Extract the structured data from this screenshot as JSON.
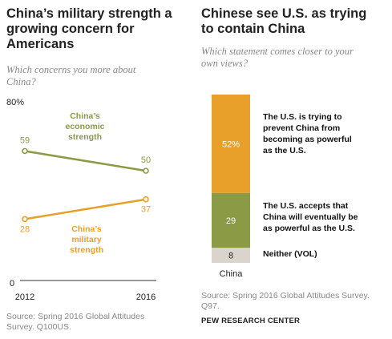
{
  "left": {
    "title_lines": [
      "China’s military strength  a",
      "growing concern for",
      "Americans"
    ],
    "subtitle_lines": [
      "Which concerns you more about",
      "China?"
    ],
    "ylim": [
      0,
      80
    ],
    "ytick_top": "80%",
    "ytick_bottom": "0",
    "source_lines": [
      "Source: Spring 2016 Global Attitudes",
      "Survey. Q100US."
    ]
  },
  "right": {
    "title_lines": [
      "Chinese see U.S. as trying",
      "to contain China"
    ],
    "subtitle_lines": [
      "Which statement comes closer to your",
      "own views?"
    ],
    "category": "China",
    "segment_labels": [
      [
        "The U.S. is trying to",
        "prevent  China from",
        "becoming as powerful",
        "as the U.S."
      ],
      [
        "The U.S. accepts that",
        "China will eventually be",
        "as powerful  as the U.S."
      ],
      [
        "Neither (VOL)"
      ]
    ],
    "source_lines": [
      "Source: Spring 2016 Global Attitudes Survey.",
      "Q97."
    ]
  },
  "brand": "PEW RESEARCH CENTER",
  "colors": {
    "green": "#8a9a45",
    "orange": "#e9a02b",
    "neither": "#d9d5cc",
    "axis": "#333333"
  },
  "chart_data": [
    {
      "type": "line",
      "title": "China’s military strength  a growing concern for Americans",
      "x": [
        "2012",
        "2016"
      ],
      "ylim": [
        0,
        80
      ],
      "series": [
        {
          "name": "China’s economic strength",
          "values": [
            59,
            50
          ],
          "color": "#8a9a45",
          "labels": [
            "59",
            "50"
          ]
        },
        {
          "name": "China’s military strength",
          "values": [
            28,
            37
          ],
          "color": "#e9a02b",
          "labels": [
            "28",
            "37"
          ]
        }
      ]
    },
    {
      "type": "bar",
      "stacked": true,
      "title": "Chinese see U.S. as trying to contain China",
      "categories": [
        "China"
      ],
      "series": [
        {
          "name": "The U.S. is trying to prevent  China from becoming as powerful as the U.S.",
          "values": [
            52
          ],
          "label": "52%",
          "color": "#e9a02b"
        },
        {
          "name": "The U.S. accepts that China will eventually be as powerful  as the U.S.",
          "values": [
            29
          ],
          "label": "29",
          "color": "#8a9a45"
        },
        {
          "name": "Neither (VOL)",
          "values": [
            8
          ],
          "label": "8",
          "color": "#d9d5cc"
        }
      ]
    }
  ]
}
